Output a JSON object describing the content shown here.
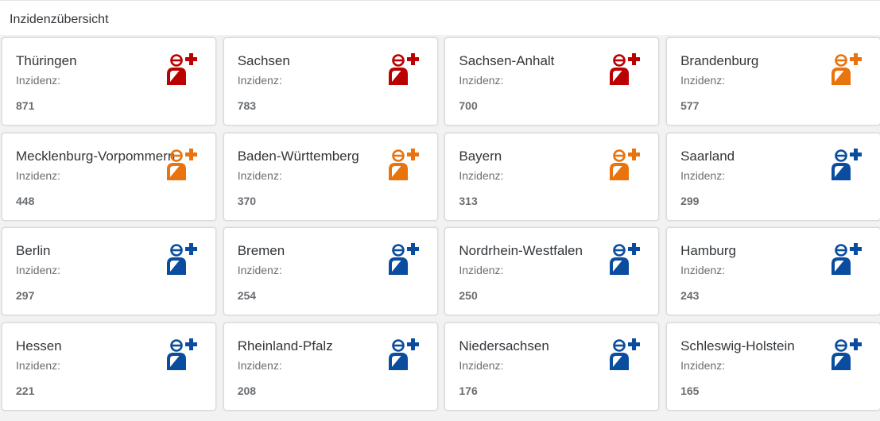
{
  "header": {
    "title": "Inzidenzübersicht"
  },
  "colors": {
    "high": "#bb0000",
    "medium": "#e9730c",
    "low": "#0a4d9e"
  },
  "tiles": [
    {
      "name": "Thüringen",
      "label": "Inzidenz:",
      "value": "871",
      "level": "high",
      "icon": "person-medical-icon"
    },
    {
      "name": "Sachsen",
      "label": "Inzidenz:",
      "value": "783",
      "level": "high",
      "icon": "person-medical-icon"
    },
    {
      "name": "Sachsen-Anhalt",
      "label": "Inzidenz:",
      "value": "700",
      "level": "high",
      "icon": "person-medical-icon"
    },
    {
      "name": "Brandenburg",
      "label": "Inzidenz:",
      "value": "577",
      "level": "medium",
      "icon": "person-medical-icon"
    },
    {
      "name": "Mecklenburg-Vorpommern",
      "label": "Inzidenz:",
      "value": "448",
      "level": "medium",
      "icon": "person-medical-icon"
    },
    {
      "name": "Baden-Württemberg",
      "label": "Inzidenz:",
      "value": "370",
      "level": "medium",
      "icon": "person-medical-icon"
    },
    {
      "name": "Bayern",
      "label": "Inzidenz:",
      "value": "313",
      "level": "medium",
      "icon": "person-medical-icon"
    },
    {
      "name": "Saarland",
      "label": "Inzidenz:",
      "value": "299",
      "level": "low",
      "icon": "person-medical-icon"
    },
    {
      "name": "Berlin",
      "label": "Inzidenz:",
      "value": "297",
      "level": "low",
      "icon": "person-medical-icon"
    },
    {
      "name": "Bremen",
      "label": "Inzidenz:",
      "value": "254",
      "level": "low",
      "icon": "person-medical-icon"
    },
    {
      "name": "Nordrhein-Westfalen",
      "label": "Inzidenz:",
      "value": "250",
      "level": "low",
      "icon": "person-medical-icon"
    },
    {
      "name": "Hamburg",
      "label": "Inzidenz:",
      "value": "243",
      "level": "low",
      "icon": "person-medical-icon"
    },
    {
      "name": "Hessen",
      "label": "Inzidenz:",
      "value": "221",
      "level": "low",
      "icon": "person-medical-icon"
    },
    {
      "name": "Rheinland-Pfalz",
      "label": "Inzidenz:",
      "value": "208",
      "level": "low",
      "icon": "person-medical-icon"
    },
    {
      "name": "Niedersachsen",
      "label": "Inzidenz:",
      "value": "176",
      "level": "low",
      "icon": "person-medical-icon"
    },
    {
      "name": "Schleswig-Holstein",
      "label": "Inzidenz:",
      "value": "165",
      "level": "low",
      "icon": "person-medical-icon"
    }
  ]
}
